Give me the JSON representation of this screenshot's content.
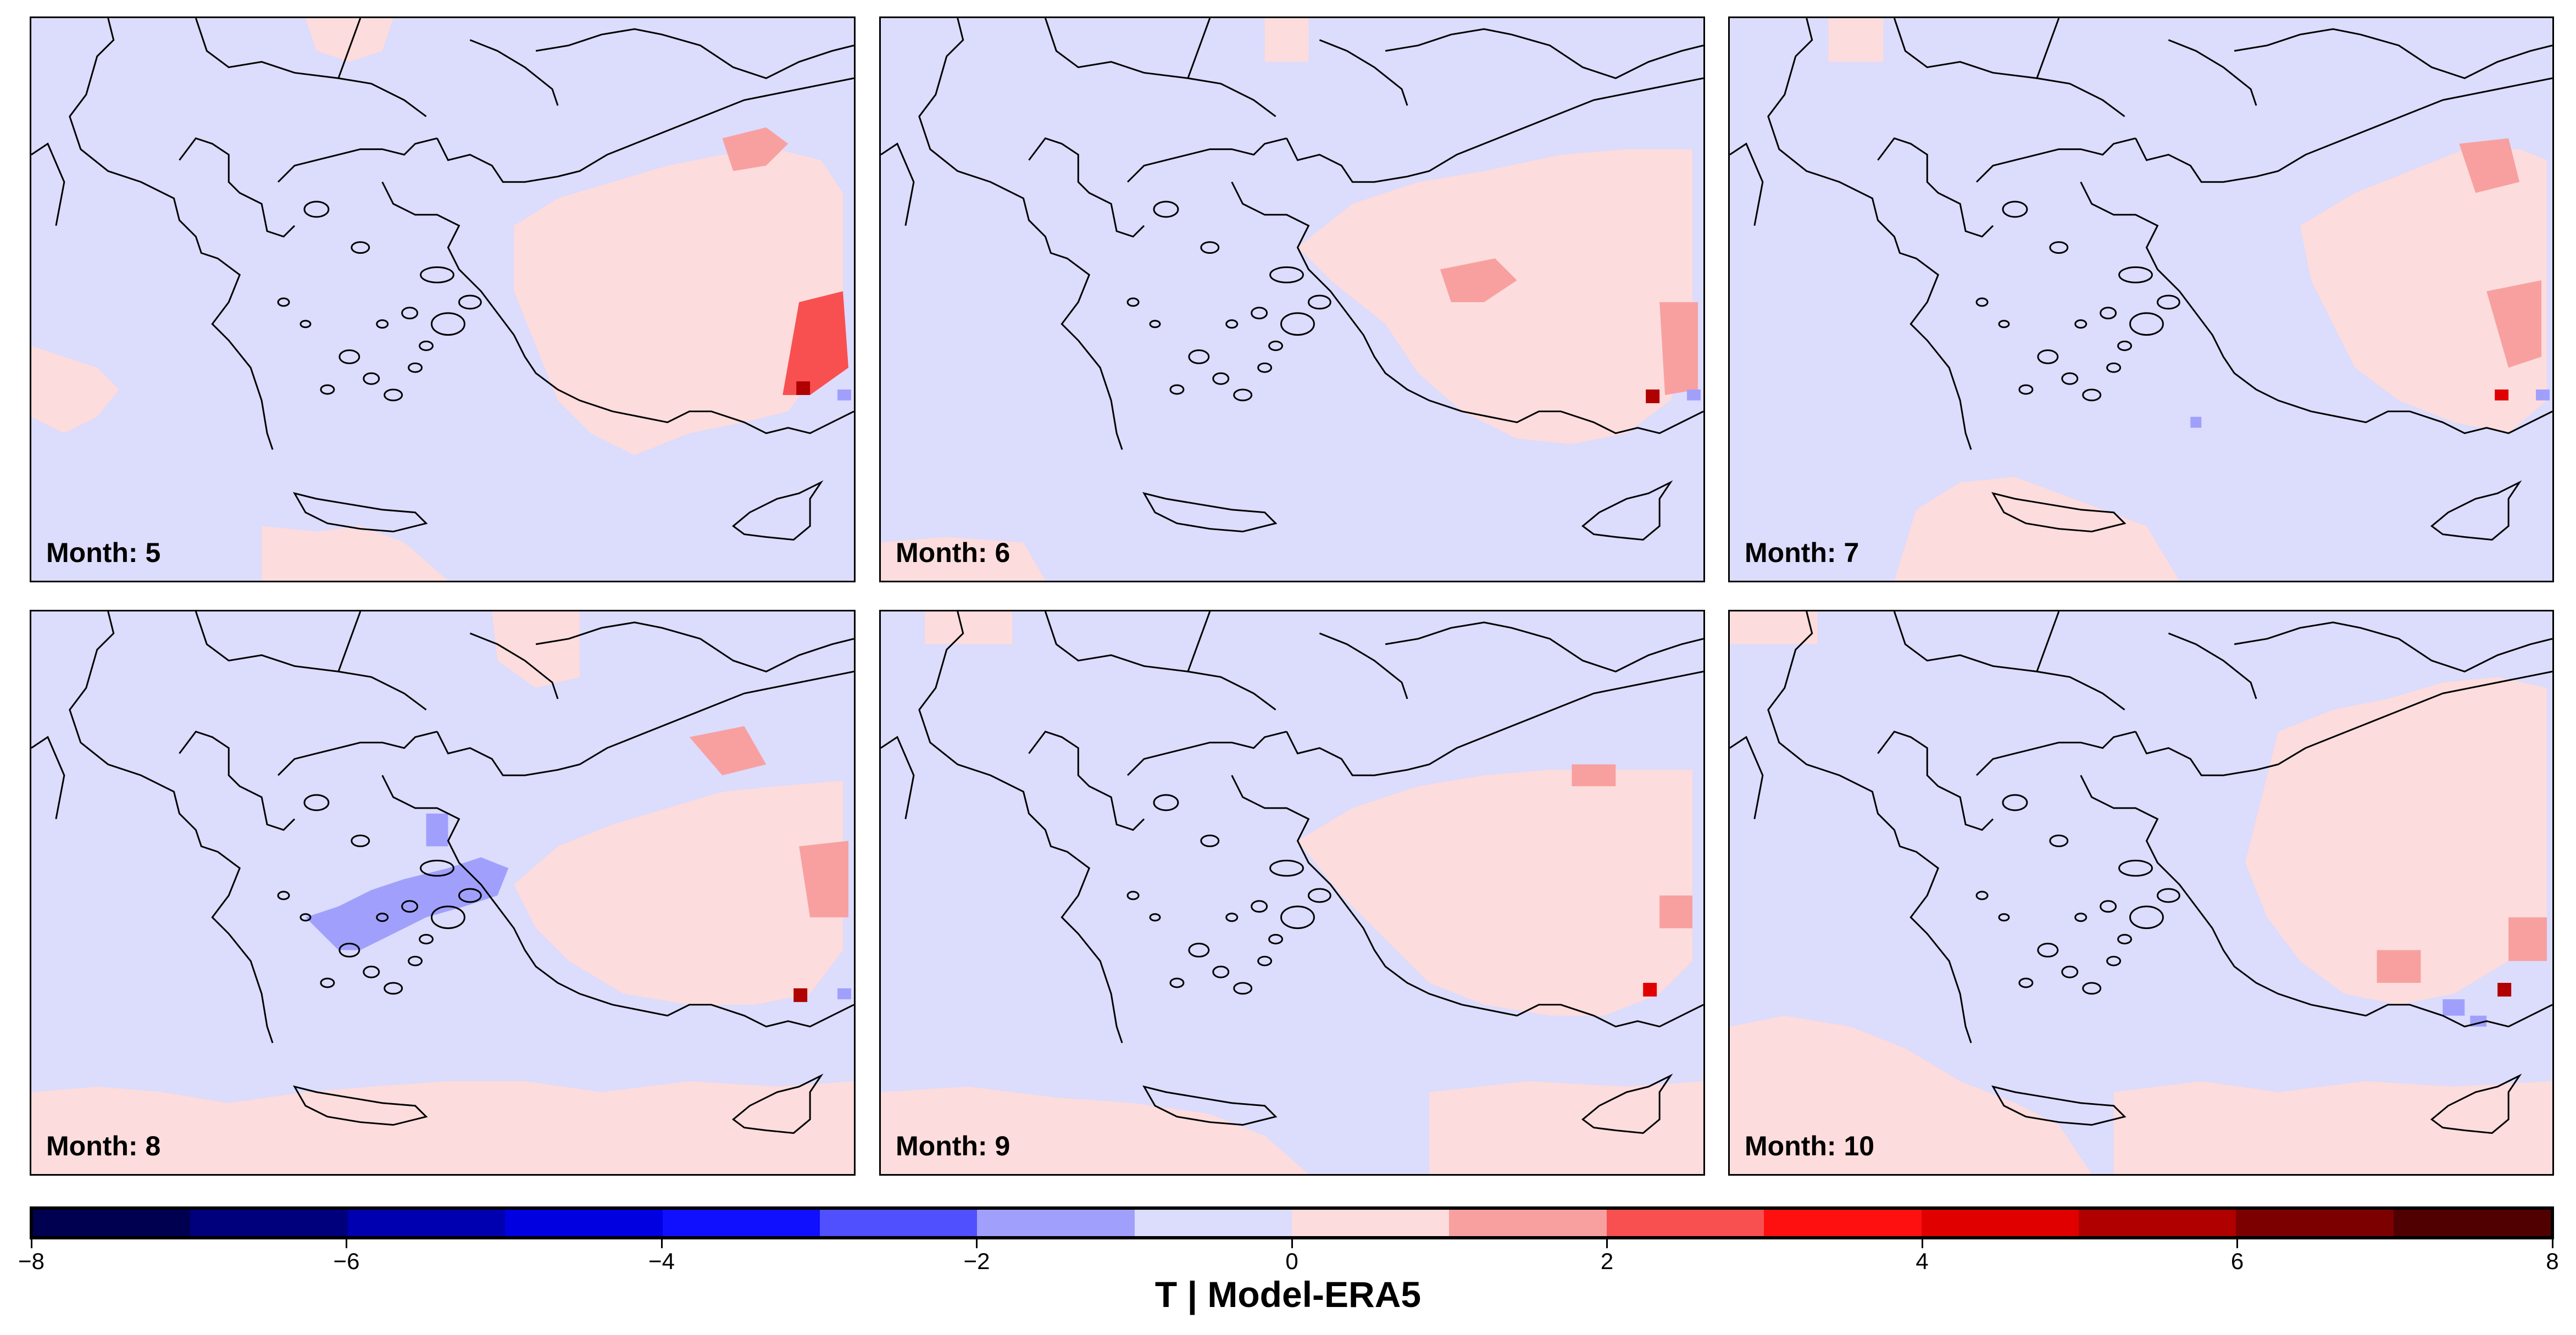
{
  "panels": [
    {
      "label": "Month: 5"
    },
    {
      "label": "Month: 6"
    },
    {
      "label": "Month: 7"
    },
    {
      "label": "Month: 8"
    },
    {
      "label": "Month: 9"
    },
    {
      "label": "Month: 10"
    }
  ],
  "colorbar": {
    "title": "T | Model-ERA5",
    "range": [
      -8,
      8
    ],
    "step": 1,
    "colors": [
      "#000050",
      "#00007d",
      "#0000b0",
      "#0000e0",
      "#1010ff",
      "#5050ff",
      "#a0a0fc",
      "#dcdcfc",
      "#fcdcdc",
      "#f8a0a0",
      "#f85050",
      "#ff1010",
      "#e00000",
      "#b00000",
      "#7d0000",
      "#500000"
    ],
    "tick_labels": [
      "−8",
      "−6",
      "−4",
      "−2",
      "0",
      "2",
      "4",
      "6",
      "8"
    ]
  },
  "colors": {
    "map_background": "#dcdcfc",
    "positive_light": "#fcdcdc",
    "coast_line": "#000000"
  }
}
